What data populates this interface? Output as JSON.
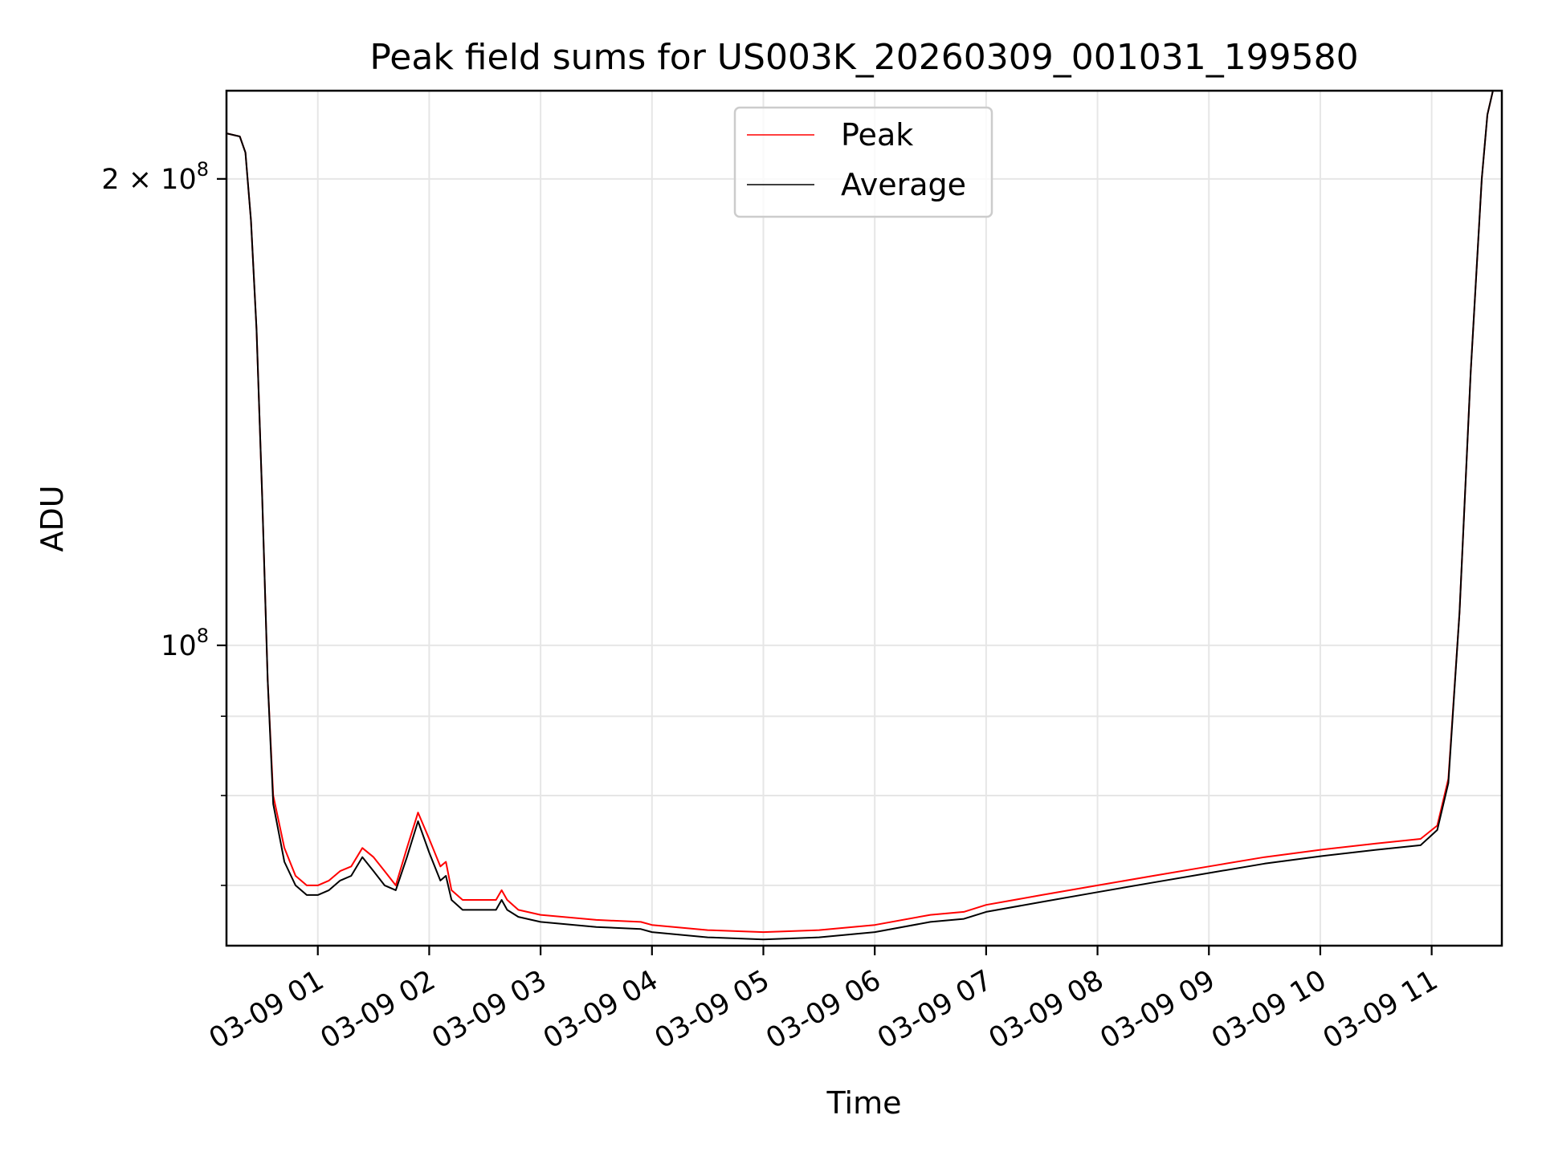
{
  "chart_data": {
    "type": "line",
    "title": "Peak field sums for US003K_20260309_001031_199580",
    "xlabel": "Time",
    "ylabel": "ADU",
    "yscale": "log",
    "ylim": [
      64000000,
      228000000
    ],
    "xlim": [
      0.18,
      11.63
    ],
    "grid": true,
    "legend": "upper center",
    "x_unit": "hours after 03-09 00:00",
    "xticks": [
      {
        "value": 1,
        "label": "03-09 01"
      },
      {
        "value": 2,
        "label": "03-09 02"
      },
      {
        "value": 3,
        "label": "03-09 03"
      },
      {
        "value": 4,
        "label": "03-09 04"
      },
      {
        "value": 5,
        "label": "03-09 05"
      },
      {
        "value": 6,
        "label": "03-09 06"
      },
      {
        "value": 7,
        "label": "03-09 07"
      },
      {
        "value": 8,
        "label": "03-09 08"
      },
      {
        "value": 9,
        "label": "03-09 09"
      },
      {
        "value": 10,
        "label": "03-09 10"
      },
      {
        "value": 11,
        "label": "03-09 11"
      }
    ],
    "yticks_major": [
      {
        "value": 100000000,
        "base": "10",
        "exp": "8"
      },
      {
        "value": 200000000,
        "base": "2 × 10",
        "exp": "8"
      }
    ],
    "yticks_minor": [
      70000000,
      80000000,
      90000000
    ],
    "x": [
      0.18,
      0.3,
      0.35,
      0.4,
      0.45,
      0.5,
      0.55,
      0.6,
      0.7,
      0.8,
      0.9,
      1.0,
      1.1,
      1.2,
      1.3,
      1.4,
      1.5,
      1.6,
      1.7,
      1.8,
      1.9,
      2.0,
      2.1,
      2.15,
      2.2,
      2.3,
      2.4,
      2.5,
      2.6,
      2.65,
      2.7,
      2.8,
      3.0,
      3.5,
      3.9,
      4.0,
      4.5,
      5.0,
      5.5,
      6.0,
      6.5,
      6.8,
      7.0,
      7.5,
      8.0,
      8.5,
      9.0,
      9.5,
      10.0,
      10.5,
      10.9,
      11.05,
      11.15,
      11.25,
      11.35,
      11.45,
      11.5,
      11.55,
      11.63
    ],
    "series": [
      {
        "name": "Peak",
        "color": "#ff0000",
        "values": [
          214000000,
          213000000,
          208000000,
          188000000,
          160000000,
          125000000,
          95000000,
          80000000,
          74000000,
          71000000,
          70000000,
          70000000,
          70500000,
          71500000,
          72000000,
          74000000,
          73000000,
          71500000,
          70000000,
          74000000,
          78000000,
          75000000,
          72000000,
          72500000,
          69500000,
          68500000,
          68500000,
          68500000,
          68500000,
          69500000,
          68500000,
          67500000,
          67000000,
          66500000,
          66300000,
          66000000,
          65500000,
          65300000,
          65500000,
          66000000,
          67000000,
          67300000,
          68000000,
          69000000,
          70000000,
          71000000,
          72000000,
          73000000,
          73800000,
          74500000,
          75000000,
          76500000,
          82000000,
          105000000,
          150000000,
          200000000,
          220000000,
          228000000,
          228000000
        ]
      },
      {
        "name": "Average",
        "color": "#000000",
        "values": [
          214000000,
          213000000,
          208000000,
          188000000,
          160000000,
          125000000,
          95000000,
          79000000,
          72500000,
          70000000,
          69000000,
          69000000,
          69500000,
          70500000,
          71000000,
          73000000,
          71500000,
          70000000,
          69500000,
          73000000,
          77000000,
          73500000,
          70500000,
          71000000,
          68500000,
          67500000,
          67500000,
          67500000,
          67500000,
          68500000,
          67500000,
          66800000,
          66300000,
          65800000,
          65600000,
          65300000,
          64800000,
          64600000,
          64800000,
          65300000,
          66300000,
          66600000,
          67300000,
          68300000,
          69300000,
          70300000,
          71300000,
          72300000,
          73100000,
          73800000,
          74300000,
          76000000,
          81500000,
          105000000,
          150000000,
          200000000,
          220000000,
          228000000,
          228000000
        ]
      }
    ]
  }
}
